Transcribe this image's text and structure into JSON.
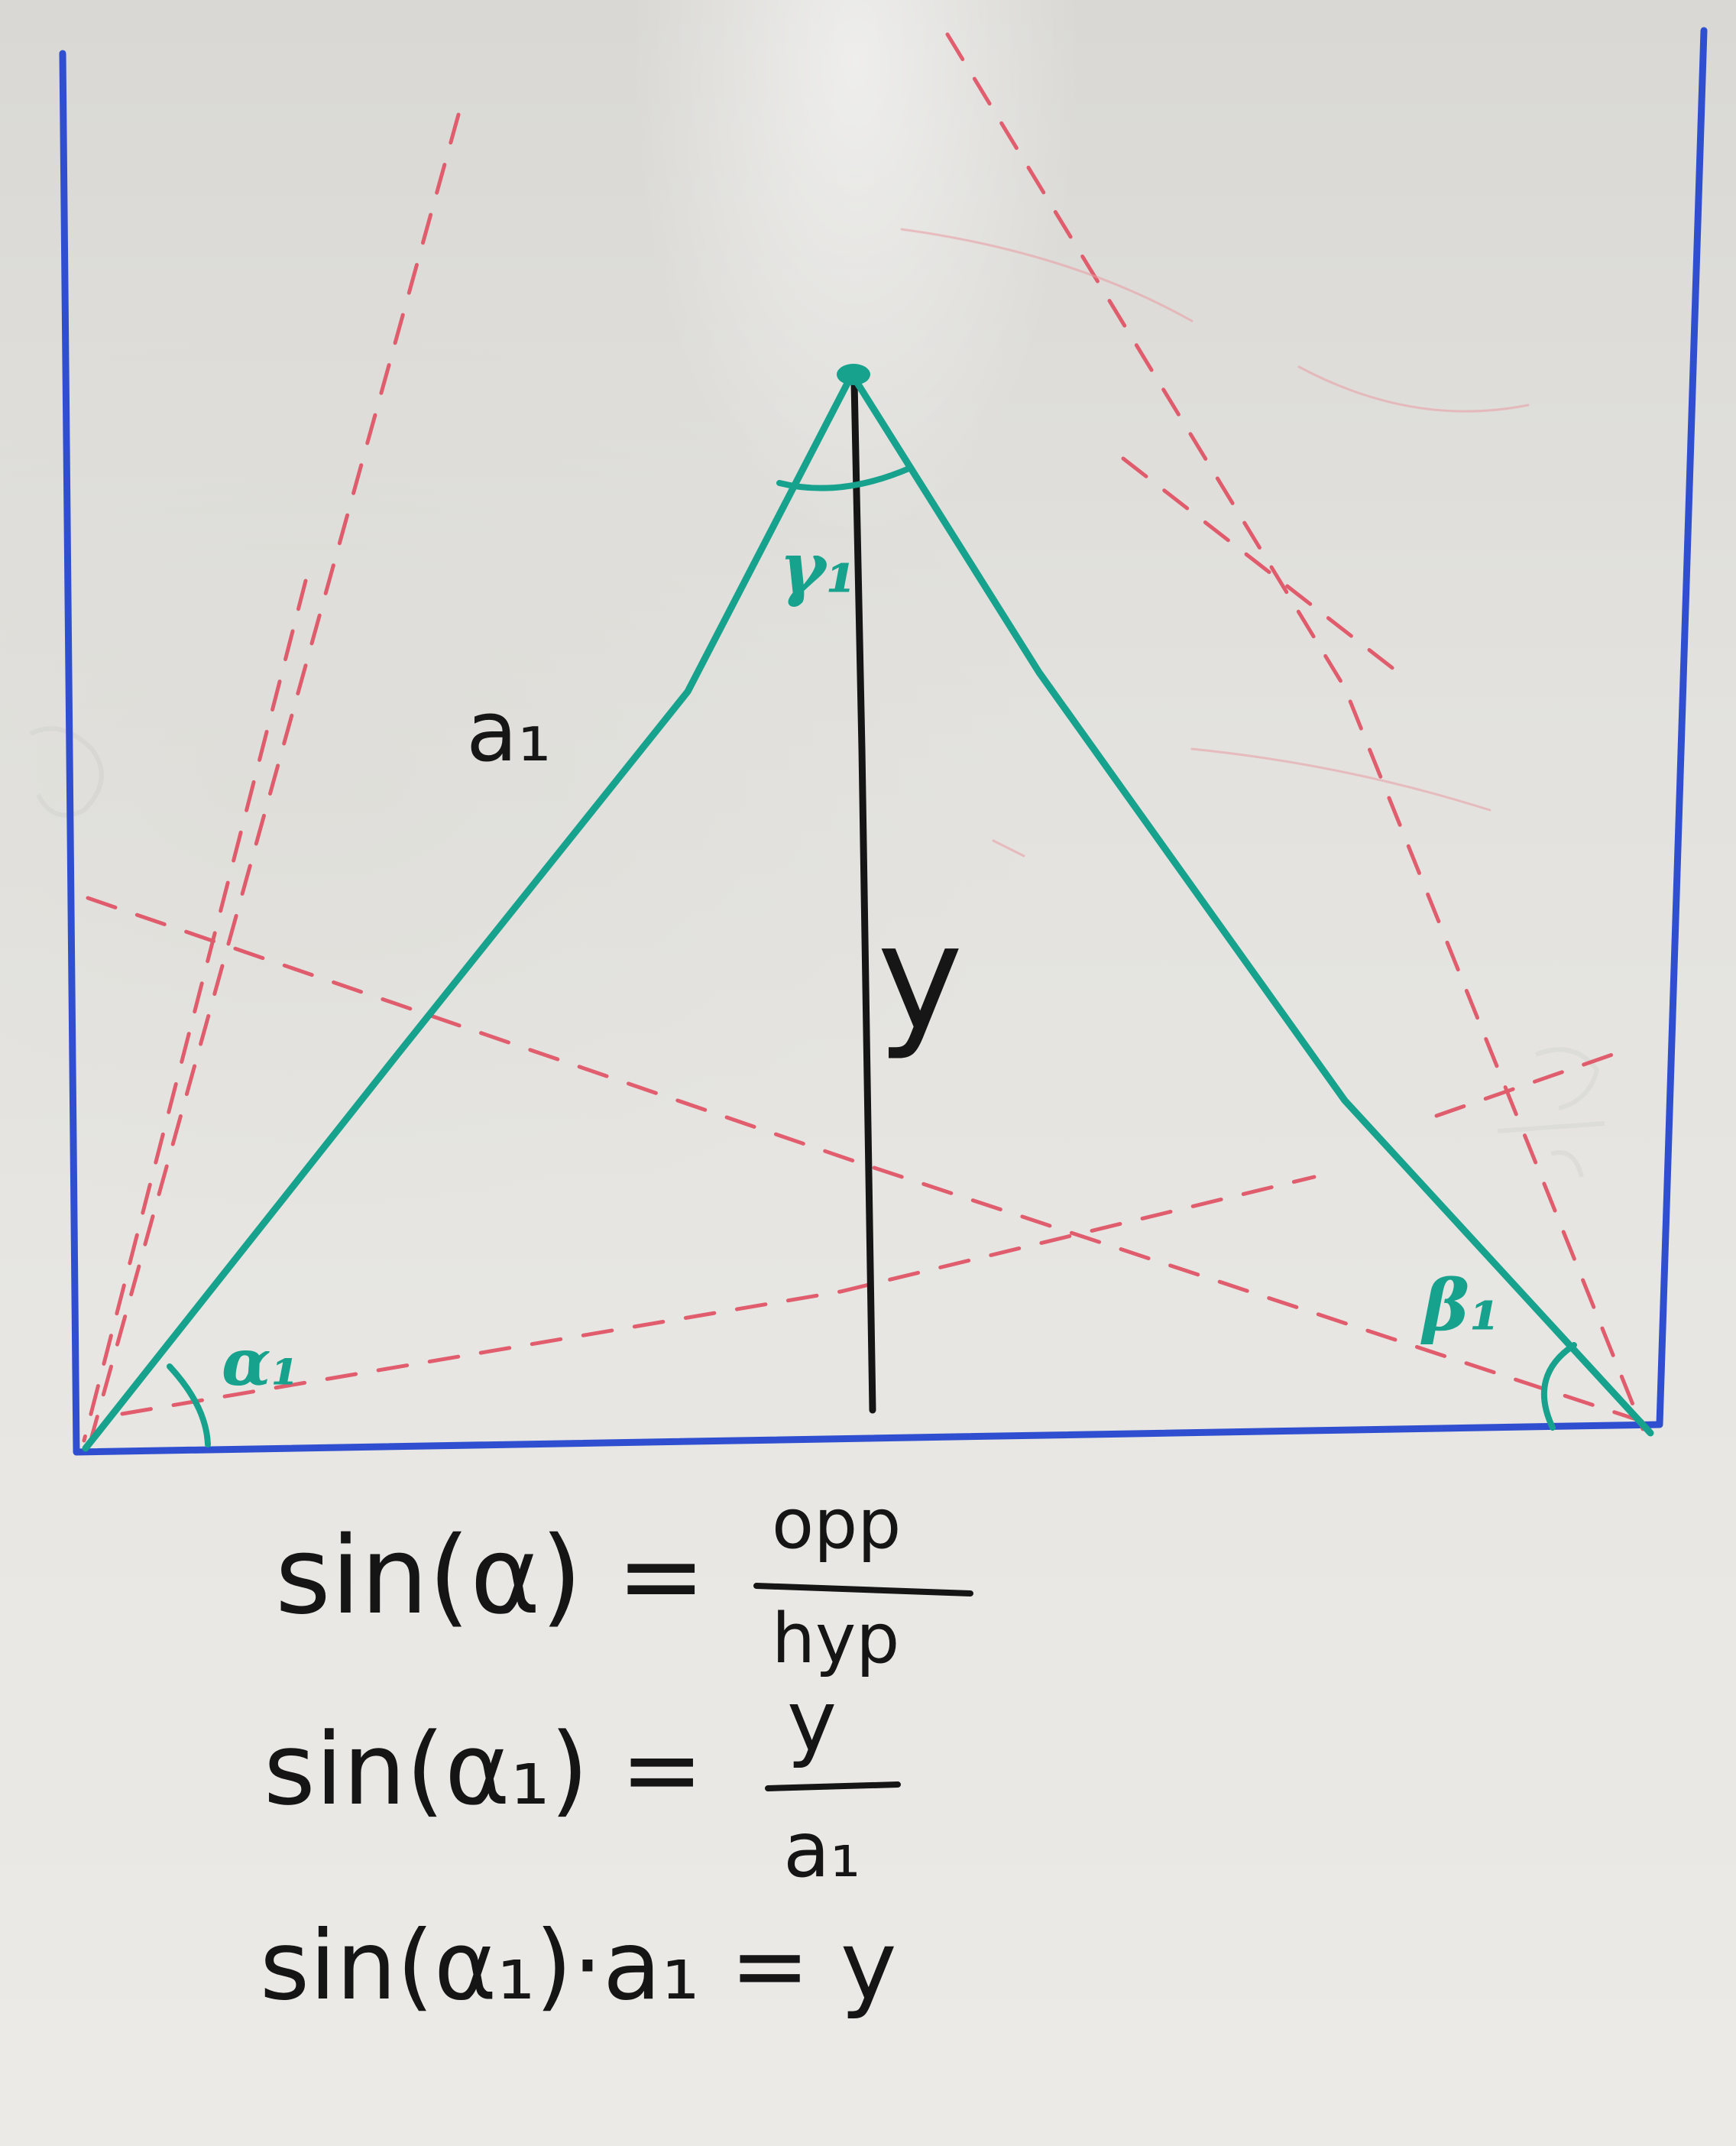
{
  "labels": {
    "side": "a₁",
    "height": "y",
    "alpha": "α₁",
    "beta": "β₁",
    "gamma": "γ₁"
  },
  "equations": {
    "eq1_left": "sin(α) =",
    "eq1_num": "opp",
    "eq1_den": "hyp",
    "eq2_left": "sin(α₁) =",
    "eq2_num": "y",
    "eq2_den": "a₁",
    "eq3": "sin(α₁)·a₁ = y"
  },
  "colors": {
    "frame": "#2f4fd0",
    "triangle": "#16a28c",
    "dashed": "#e0465a",
    "ink": "#151515"
  }
}
